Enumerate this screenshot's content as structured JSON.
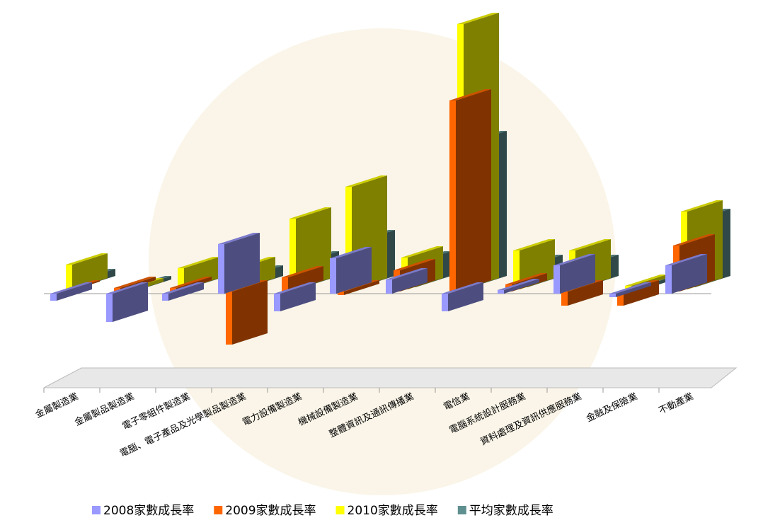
{
  "chart_data": {
    "type": "bar3d",
    "categories": [
      "金屬製造業",
      "金屬製品製造業",
      "電子零組件製造業",
      "電腦、電子產品及光學製品製造業",
      "電力設備製造業",
      "機械設備製造業",
      "整體資訊及通訊傳播業",
      "電信業",
      "電腦系統設計服務業",
      "資料處理及資訊供應服務業",
      "金融及保險業",
      "不動產業"
    ],
    "series": [
      {
        "name": "2008家數成長率",
        "color": "#9999ff",
        "values": [
          -10,
          -40,
          -10,
          70,
          -25,
          50,
          20,
          -25,
          5,
          40,
          -5,
          40
        ]
      },
      {
        "name": "2009家數成長率",
        "color": "#ff6600",
        "values": [
          -2,
          5,
          5,
          -75,
          20,
          -5,
          30,
          270,
          10,
          -20,
          -20,
          65
        ]
      },
      {
        "name": "2010家數成長率",
        "color": "#ffff00",
        "values": [
          35,
          -5,
          30,
          30,
          100,
          145,
          45,
          375,
          55,
          55,
          5,
          110
        ]
      },
      {
        "name": "平均家數成長率",
        "color": "#5f9090",
        "values": [
          10,
          -5,
          10,
          15,
          35,
          65,
          35,
          205,
          30,
          30,
          -5,
          95
        ]
      }
    ],
    "ylim": [
      -100,
      400
    ],
    "legend": "bottom"
  }
}
